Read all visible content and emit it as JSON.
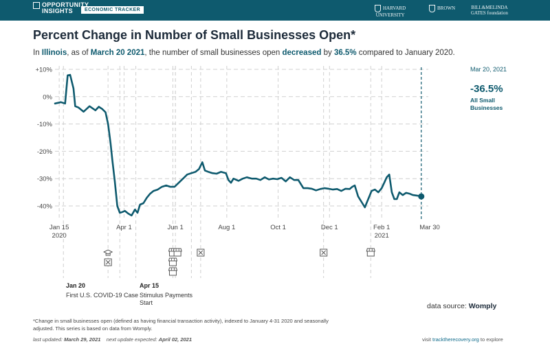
{
  "header": {
    "brand_line1": "OPPORTUNITY",
    "brand_line2": "INSIGHTS",
    "tracker": "ECONOMIC TRACKER",
    "partner_harvard": "HARVARD",
    "partner_harvard_sub": "UNIVERSITY",
    "partner_brown": "BROWN",
    "partner_gates1": "BILL&MELINDA",
    "partner_gates2": "GATES foundation"
  },
  "title": "Percent Change in Number of Small Businesses Open*",
  "subtitle": {
    "p1": "In ",
    "state": "Illinois",
    "p2": ", as of ",
    "date": "March 20 2021",
    "p3": ", the number of small businesses open ",
    "direction": "decreased",
    "p4": " by ",
    "value": "36.5%",
    "p5": " compared to January 2020."
  },
  "current": {
    "date": "Mar 20, 2021",
    "value": "-36.5%",
    "label": "All Small Businesses"
  },
  "events": [
    {
      "date": "Jan 20",
      "label": "First U.S. COVID-19 Case"
    },
    {
      "date": "Apr 15",
      "label": "Stimulus Payments Start"
    }
  ],
  "source": {
    "prefix": "data source: ",
    "name": "Womply"
  },
  "footnote": "*Change in small businesses open (defined as having financial transaction activity), indexed to January 4-31 2020 and seasonally adjusted. This series is based on data from Womply.",
  "updated": {
    "last_label": "last updated: ",
    "last_date": "March 29, 2021",
    "next_label": "next update expected: ",
    "next_date": "April 02, 2021"
  },
  "visit": {
    "prefix": "visit ",
    "link": "tracktherecovery.org",
    "suffix": " to explore"
  },
  "colors": {
    "line": "#0e5a6e",
    "accent": "#0e5a6e",
    "grid": "#cccccc"
  },
  "chart_data": {
    "type": "line",
    "title": "Percent Change in Number of Small Businesses Open*",
    "xlabel": "",
    "ylabel": "",
    "ylim": [
      -45,
      10
    ],
    "y_ticks": [
      10,
      0,
      -10,
      -20,
      -30,
      -40
    ],
    "y_tick_labels": [
      "+10%",
      "0%",
      "-10%",
      "-20%",
      "-30%",
      "-40%"
    ],
    "x_ticks": [
      {
        "date": "2020-01-15",
        "label": "Jan 15",
        "sub": "2020"
      },
      {
        "date": "2020-04-01",
        "label": "Apr 1",
        "sub": ""
      },
      {
        "date": "2020-06-01",
        "label": "Jun 1",
        "sub": ""
      },
      {
        "date": "2020-08-01",
        "label": "Aug 1",
        "sub": ""
      },
      {
        "date": "2020-10-01",
        "label": "Oct 1",
        "sub": ""
      },
      {
        "date": "2020-12-01",
        "label": "Dec 1",
        "sub": ""
      },
      {
        "date": "2021-02-01",
        "label": "Feb 1",
        "sub": "2021"
      },
      {
        "date": "2021-03-30",
        "label": "Mar 30",
        "sub": ""
      }
    ],
    "x_start": "2020-01-10",
    "x_end": "2021-03-30",
    "event_lines": [
      "2020-01-20",
      "2020-03-13",
      "2020-03-27",
      "2020-04-15",
      "2020-05-29",
      "2020-06-01",
      "2020-06-20",
      "2020-07-01",
      "2020-11-24",
      "2021-01-19"
    ],
    "event_icons": [
      {
        "date": "2020-03-13",
        "icons": [
          "school-icon",
          "closed-icon"
        ]
      },
      {
        "date": "2020-05-29",
        "icons": [
          "store-icon",
          "store-icon",
          "store-icon"
        ]
      },
      {
        "date": "2020-06-01",
        "icons": [
          "store-icon"
        ]
      },
      {
        "date": "2020-07-01",
        "icons": [
          "closed-icon"
        ]
      },
      {
        "date": "2020-11-24",
        "icons": [
          "closed-icon"
        ]
      },
      {
        "date": "2021-01-19",
        "icons": [
          "store-icon"
        ]
      }
    ],
    "series": [
      {
        "x": [
          "2020-01-10",
          "2020-01-17",
          "2020-01-22",
          "2020-01-25",
          "2020-01-28",
          "2020-02-01",
          "2020-02-03",
          "2020-02-07",
          "2020-02-13",
          "2020-02-20",
          "2020-02-27",
          "2020-03-02",
          "2020-03-06",
          "2020-03-10",
          "2020-03-13",
          "2020-03-16",
          "2020-03-18",
          "2020-03-21",
          "2020-03-24",
          "2020-03-27",
          "2020-03-30",
          "2020-04-02",
          "2020-04-06",
          "2020-04-10",
          "2020-04-14",
          "2020-04-17",
          "2020-04-20",
          "2020-04-24",
          "2020-04-28",
          "2020-05-02",
          "2020-05-06",
          "2020-05-11",
          "2020-05-16",
          "2020-05-21",
          "2020-05-26",
          "2020-05-31",
          "2020-06-05",
          "2020-06-10",
          "2020-06-15",
          "2020-06-20",
          "2020-06-25",
          "2020-06-29",
          "2020-07-03",
          "2020-07-06",
          "2020-07-10",
          "2020-07-15",
          "2020-07-20",
          "2020-07-25",
          "2020-07-31",
          "2020-08-03",
          "2020-08-06",
          "2020-08-09",
          "2020-08-15",
          "2020-08-20",
          "2020-08-25",
          "2020-08-31",
          "2020-09-05",
          "2020-09-10",
          "2020-09-15",
          "2020-09-20",
          "2020-09-25",
          "2020-09-30",
          "2020-10-05",
          "2020-10-10",
          "2020-10-15",
          "2020-10-20",
          "2020-10-25",
          "2020-10-31",
          "2020-11-05",
          "2020-11-10",
          "2020-11-15",
          "2020-11-20",
          "2020-11-25",
          "2020-11-30",
          "2020-12-05",
          "2020-12-10",
          "2020-12-15",
          "2020-12-20",
          "2020-12-25",
          "2020-12-28",
          "2020-12-31",
          "2021-01-04",
          "2021-01-08",
          "2021-01-12",
          "2021-01-16",
          "2021-01-20",
          "2021-01-24",
          "2021-01-28",
          "2021-02-01",
          "2021-02-04",
          "2021-02-07",
          "2021-02-10",
          "2021-02-13",
          "2021-02-16",
          "2021-02-19",
          "2021-02-22",
          "2021-02-26",
          "2021-03-02",
          "2021-03-06",
          "2021-03-10",
          "2021-03-15",
          "2021-03-20"
        ],
        "y": [
          -2.5,
          -2,
          -2.5,
          7.8,
          8,
          3,
          -3.5,
          -4,
          -5.5,
          -3.5,
          -5,
          -3.7,
          -4.5,
          -5.7,
          -10,
          -17,
          -23,
          -31,
          -40,
          -42.5,
          -42.2,
          -41.8,
          -42.8,
          -43.5,
          -41.3,
          -42.5,
          -39.5,
          -39,
          -37,
          -35.5,
          -34.5,
          -34,
          -33,
          -32.5,
          -33,
          -33,
          -31.5,
          -30,
          -28.5,
          -28,
          -27.5,
          -26.5,
          -24,
          -27,
          -27.5,
          -28,
          -28.2,
          -27.5,
          -28,
          -30.5,
          -31.5,
          -30,
          -30.8,
          -30,
          -29.5,
          -30,
          -30,
          -30.5,
          -29.5,
          -30.3,
          -30,
          -30.2,
          -29.7,
          -31,
          -29.5,
          -30.5,
          -30.5,
          -33.5,
          -33.5,
          -33.7,
          -34.3,
          -33.8,
          -33.5,
          -33.7,
          -34,
          -33.8,
          -34.5,
          -33.7,
          -33.8,
          -33,
          -32.5,
          -36.5,
          -38.5,
          -40.5,
          -37.5,
          -34.5,
          -34,
          -35,
          -33.5,
          -31.5,
          -29.5,
          -28.5,
          -35,
          -37.5,
          -37.5,
          -35,
          -36,
          -35.2,
          -35.5,
          -36,
          -36.2,
          -36.5
        ]
      }
    ]
  }
}
